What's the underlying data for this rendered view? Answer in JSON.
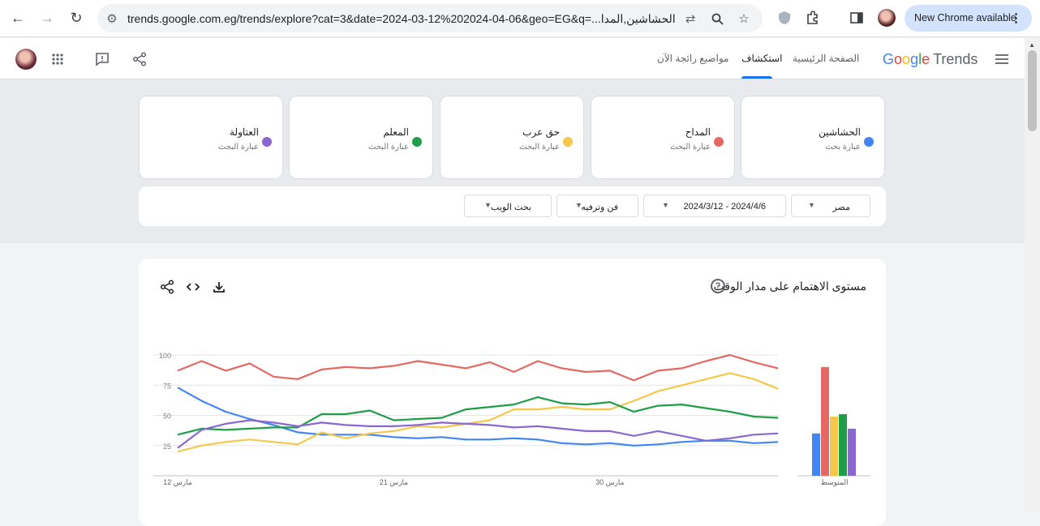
{
  "browser": {
    "url": "trends.google.com.eg/trends/explore?cat=3&date=2024-03-12%202024-04-06&geo=EG&q=...الحشاشين,المدا",
    "new_chrome_label": "New Chrome available"
  },
  "appbar": {
    "logo_google": "Google",
    "logo_trends": "Trends",
    "nav": {
      "home": "الصفحة الرئيسية",
      "explore": "استكشاف",
      "trending": "مواضيع رائجة الآن"
    }
  },
  "terms": [
    {
      "name": "الحشاشين",
      "type": "عبارة بحث",
      "color": "#4285f4"
    },
    {
      "name": "المداح",
      "type": "عبارة البحث",
      "color": "#e46962"
    },
    {
      "name": "حق عرب",
      "type": "عبارة البحث",
      "color": "#f5c84c"
    },
    {
      "name": "المعلم",
      "type": "عبارة البحث",
      "color": "#1e9e48"
    },
    {
      "name": "العتاولة",
      "type": "عبارة البحث",
      "color": "#8a68d2"
    }
  ],
  "filters": {
    "geo": "مصر",
    "date": "2024/3/12 - 2024/4/6",
    "category": "فن وترفيه",
    "search_type": "بحث الويب"
  },
  "panel": {
    "title": "مستوى الاهتمام على مدار الوقت"
  },
  "chart_data": {
    "type": "line",
    "x_labels": [
      "12 مارس",
      "21 مارس",
      "30 مارس"
    ],
    "y_ticks": [
      "100",
      "75",
      "50",
      "25"
    ],
    "ylim": [
      0,
      100
    ],
    "grid": true,
    "series": [
      {
        "name": "الحشاشين",
        "color": "#4285f4",
        "values": [
          73,
          62,
          53,
          47,
          42,
          36,
          34,
          34,
          34,
          32,
          31,
          32,
          30,
          30,
          31,
          30,
          27,
          26,
          27,
          25,
          26,
          28,
          29,
          29,
          27,
          28
        ],
        "average": 35
      },
      {
        "name": "المداح",
        "color": "#e46962",
        "values": [
          87,
          95,
          87,
          93,
          82,
          80,
          88,
          90,
          89,
          91,
          95,
          92,
          89,
          94,
          86,
          95,
          89,
          86,
          87,
          79,
          87,
          89,
          95,
          100,
          94,
          89
        ],
        "average": 90
      },
      {
        "name": "حق عرب",
        "color": "#f5c84c",
        "values": [
          20,
          25,
          28,
          30,
          28,
          26,
          36,
          31,
          35,
          37,
          41,
          40,
          43,
          46,
          55,
          55,
          57,
          55,
          55,
          62,
          70,
          75,
          80,
          85,
          80,
          72
        ],
        "average": 49
      },
      {
        "name": "المعلم",
        "color": "#1e9e48",
        "values": [
          34,
          39,
          38,
          39,
          40,
          40,
          51,
          51,
          54,
          46,
          47,
          48,
          55,
          57,
          59,
          65,
          60,
          59,
          61,
          53,
          58,
          59,
          56,
          53,
          49,
          48
        ],
        "average": 51
      },
      {
        "name": "العتاولة",
        "color": "#8a68d2",
        "values": [
          23,
          38,
          43,
          46,
          44,
          41,
          44,
          42,
          41,
          41,
          42,
          44,
          43,
          42,
          40,
          41,
          39,
          37,
          37,
          33,
          37,
          33,
          29,
          31,
          34,
          35
        ],
        "average": 39
      }
    ],
    "average_label": "المتوسط"
  }
}
